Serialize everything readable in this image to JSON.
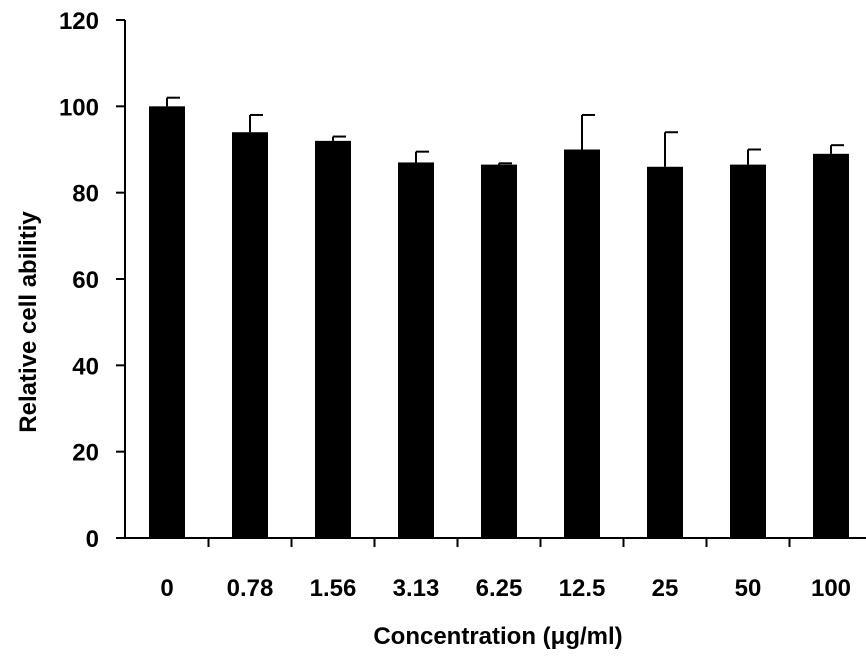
{
  "chart_data": {
    "type": "bar",
    "title": "",
    "xlabel": "Concentration (μg/ml)",
    "ylabel": "Relative cell abilitiy",
    "categories": [
      "0",
      "0.78",
      "1.56",
      "3.13",
      "6.25",
      "12.5",
      "25",
      "50",
      "100"
    ],
    "values": [
      100,
      94,
      92,
      87,
      86.5,
      90,
      86,
      86.5,
      89
    ],
    "errors": [
      2,
      4,
      1,
      2.5,
      0.3,
      8,
      8,
      3.5,
      2
    ],
    "ylim": [
      0,
      120
    ],
    "yticks": [
      0,
      20,
      40,
      60,
      80,
      100,
      120
    ],
    "grid": false,
    "bar_color": "#000000"
  }
}
